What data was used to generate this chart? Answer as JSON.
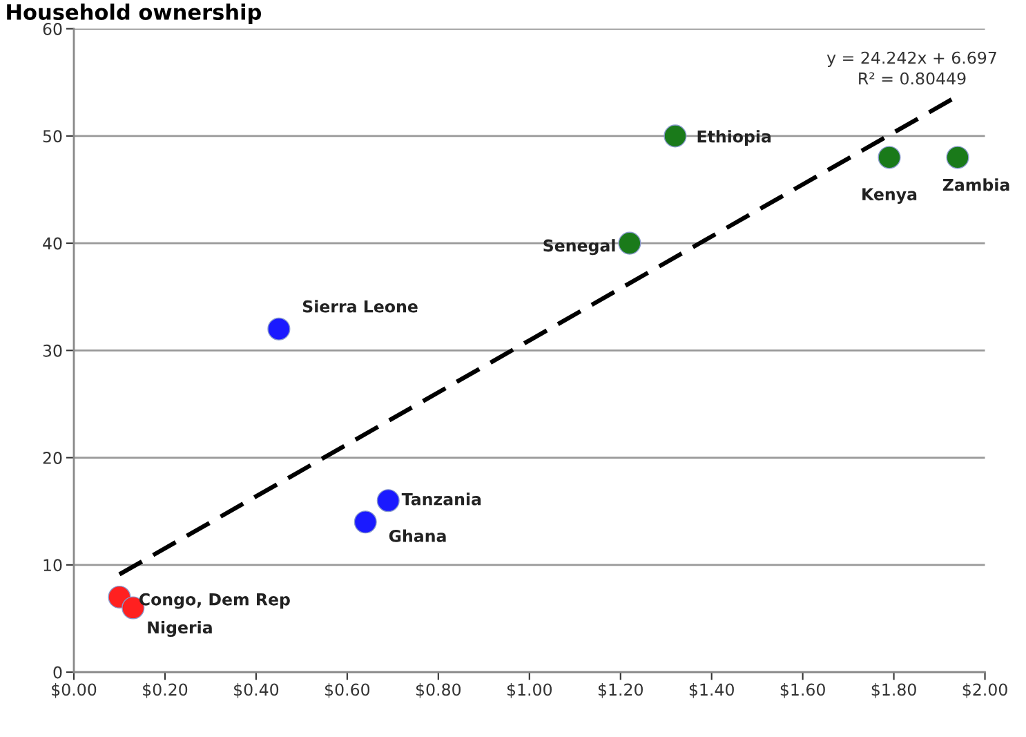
{
  "chart_data": {
    "type": "scatter",
    "title": "Household ownership",
    "xlim": [
      0,
      2
    ],
    "ylim": [
      0,
      60
    ],
    "xticks": [
      {
        "value": 0,
        "label": "$0.00"
      },
      {
        "value": 0.2,
        "label": "$0.20"
      },
      {
        "value": 0.4,
        "label": "$0.40"
      },
      {
        "value": 0.6,
        "label": "$0.60"
      },
      {
        "value": 0.8,
        "label": "$0.80"
      },
      {
        "value": 1.0,
        "label": "$1.00"
      },
      {
        "value": 1.2,
        "label": "$1.20"
      },
      {
        "value": 1.4,
        "label": "$1.40"
      },
      {
        "value": 1.6,
        "label": "$1.60"
      },
      {
        "value": 1.8,
        "label": "$1.80"
      },
      {
        "value": 2.0,
        "label": "$2.00"
      }
    ],
    "yticks": [
      0,
      10,
      20,
      30,
      40,
      50,
      60
    ],
    "grid": "y",
    "legend": false,
    "marker": "circle",
    "series": [
      {
        "color": "#ff2020",
        "x": [
          0.1,
          0.13
        ],
        "values": [
          7,
          6
        ]
      },
      {
        "color": "#1a1aff",
        "x": [
          0.45,
          0.64,
          0.69
        ],
        "values": [
          32,
          14,
          16
        ]
      },
      {
        "color": "#1a7a1a",
        "x": [
          1.22,
          1.32,
          1.79,
          1.94
        ],
        "values": [
          40,
          50,
          48,
          48
        ]
      },
      {
        "type": "line",
        "marker": "none",
        "color": "#000000",
        "line_style": "dashed",
        "x": [
          0.1,
          1.93
        ],
        "values": [
          9.12,
          53.48
        ]
      }
    ],
    "annotations": [
      {
        "text": "Congo, Dem Rep",
        "x": 0.1,
        "y": 7
      },
      {
        "text": "Nigeria",
        "x": 0.13,
        "y": 6
      },
      {
        "text": "Sierra Leone",
        "x": 0.45,
        "y": 32
      },
      {
        "text": "Ghana",
        "x": 0.64,
        "y": 14
      },
      {
        "text": "Tanzania",
        "x": 0.69,
        "y": 16
      },
      {
        "text": "Senegal",
        "x": 1.22,
        "y": 40
      },
      {
        "text": "Ethiopia",
        "x": 1.32,
        "y": 50
      },
      {
        "text": "Kenya",
        "x": 1.79,
        "y": 48
      },
      {
        "text": "Zambia",
        "x": 1.94,
        "y": 48
      },
      "y = 24.242x + 6.697\nR² = 0.80449"
    ]
  }
}
